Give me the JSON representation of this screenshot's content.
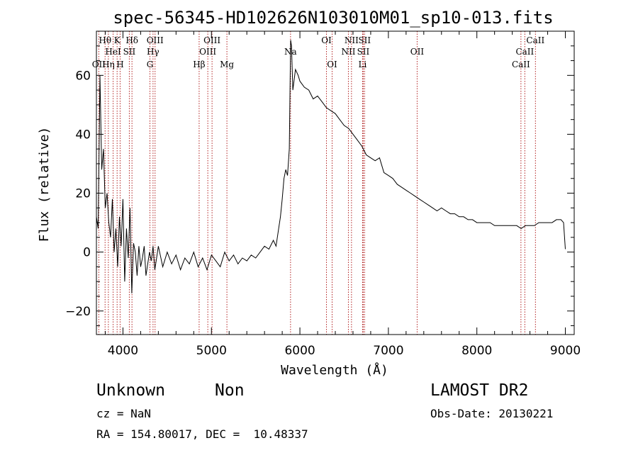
{
  "header": {
    "title": "spec-56345-HD102626N103010M01_sp10-013.fits"
  },
  "info": {
    "class": "Unknown",
    "subclass": "Non",
    "cz": "cz = NaN",
    "radec": "RA = 154.80017, DEC =  10.48337",
    "survey": "LAMOST DR2",
    "obsdate": "Obs-Date: 20130221"
  },
  "colors": {
    "line_marker": "#b22222",
    "spectrum": "#000000"
  },
  "chart_data": {
    "type": "line",
    "title": "spec-56345-HD102626N103010M01_sp10-013.fits",
    "xlabel": "Wavelength (Å)",
    "ylabel": "Flux (relative)",
    "xlim": [
      3700,
      9100
    ],
    "ylim": [
      -28,
      75
    ],
    "grid": false,
    "x_ticks": [
      {
        "value": 4000,
        "label": "4000"
      },
      {
        "value": 5000,
        "label": "5000"
      },
      {
        "value": 6000,
        "label": "6000"
      },
      {
        "value": 7000,
        "label": "7000"
      },
      {
        "value": 8000,
        "label": "8000"
      },
      {
        "value": 9000,
        "label": "9000"
      }
    ],
    "y_ticks": [
      {
        "value": -20,
        "label": "−20"
      },
      {
        "value": 0,
        "label": "0"
      },
      {
        "value": 20,
        "label": "20"
      },
      {
        "value": 40,
        "label": "40"
      },
      {
        "value": 60,
        "label": "60"
      }
    ],
    "spectral_lines": [
      {
        "label": "OII",
        "wavelength": 3727,
        "row": 3
      },
      {
        "label": "Hθ",
        "wavelength": 3798,
        "row": 1
      },
      {
        "label": "Hη",
        "wavelength": 3835,
        "row": 3
      },
      {
        "label": "HeI",
        "wavelength": 3889,
        "row": 2
      },
      {
        "label": "K",
        "wavelength": 3934,
        "row": 1
      },
      {
        "label": "H",
        "wavelength": 3968,
        "row": 3
      },
      {
        "label": "SII",
        "wavelength": 4072,
        "row": 2
      },
      {
        "label": "Hδ",
        "wavelength": 4102,
        "row": 1
      },
      {
        "label": "G",
        "wavelength": 4305,
        "row": 3
      },
      {
        "label": "Hγ",
        "wavelength": 4340,
        "row": 2
      },
      {
        "label": "OIII",
        "wavelength": 4363,
        "row": 1
      },
      {
        "label": "Hβ",
        "wavelength": 4861,
        "row": 3
      },
      {
        "label": "OIII",
        "wavelength": 4959,
        "row": 2
      },
      {
        "label": "OIII",
        "wavelength": 5007,
        "row": 1
      },
      {
        "label": "Mg",
        "wavelength": 5175,
        "row": 3
      },
      {
        "label": "Na",
        "wavelength": 5894,
        "row": 2
      },
      {
        "label": "OI",
        "wavelength": 6300,
        "row": 1
      },
      {
        "label": "OI",
        "wavelength": 6364,
        "row": 3
      },
      {
        "label": "NII",
        "wavelength": 6548,
        "row": 2
      },
      {
        "label": "NII",
        "wavelength": 6583,
        "row": 1
      },
      {
        "label": "Li",
        "wavelength": 6708,
        "row": 3
      },
      {
        "label": "SII",
        "wavelength": 6716,
        "row": 2
      },
      {
        "label": "SII",
        "wavelength": 6731,
        "row": 1
      },
      {
        "label": "OII",
        "wavelength": 7325,
        "row": 2
      },
      {
        "label": "CaII",
        "wavelength": 8498,
        "row": 3
      },
      {
        "label": "CaII",
        "wavelength": 8542,
        "row": 2
      },
      {
        "label": "CaII",
        "wavelength": 8662,
        "row": 1
      }
    ],
    "series": [
      {
        "values": [
          [
            3700,
            12
          ],
          [
            3720,
            8
          ],
          [
            3740,
            60
          ],
          [
            3760,
            28
          ],
          [
            3780,
            35
          ],
          [
            3800,
            15
          ],
          [
            3820,
            20
          ],
          [
            3840,
            10
          ],
          [
            3860,
            5
          ],
          [
            3880,
            18
          ],
          [
            3900,
            0
          ],
          [
            3920,
            8
          ],
          [
            3940,
            -5
          ],
          [
            3960,
            12
          ],
          [
            3980,
            2
          ],
          [
            4000,
            18
          ],
          [
            4020,
            -10
          ],
          [
            4040,
            8
          ],
          [
            4060,
            -2
          ],
          [
            4080,
            15
          ],
          [
            4100,
            -14
          ],
          [
            4120,
            3
          ],
          [
            4140,
            0
          ],
          [
            4160,
            -8
          ],
          [
            4180,
            2
          ],
          [
            4200,
            -5
          ],
          [
            4220,
            -2
          ],
          [
            4240,
            2
          ],
          [
            4260,
            -8
          ],
          [
            4280,
            -4
          ],
          [
            4300,
            0
          ],
          [
            4320,
            -3
          ],
          [
            4340,
            2
          ],
          [
            4360,
            -6
          ],
          [
            4380,
            -2
          ],
          [
            4400,
            2
          ],
          [
            4450,
            -5
          ],
          [
            4500,
            0
          ],
          [
            4550,
            -4
          ],
          [
            4600,
            -1
          ],
          [
            4650,
            -6
          ],
          [
            4700,
            -2
          ],
          [
            4750,
            -4
          ],
          [
            4800,
            0
          ],
          [
            4850,
            -5
          ],
          [
            4900,
            -2
          ],
          [
            4950,
            -6
          ],
          [
            5000,
            -1
          ],
          [
            5050,
            -3
          ],
          [
            5100,
            -5
          ],
          [
            5150,
            0
          ],
          [
            5200,
            -3
          ],
          [
            5250,
            -1
          ],
          [
            5300,
            -4
          ],
          [
            5350,
            -2
          ],
          [
            5400,
            -3
          ],
          [
            5450,
            -1
          ],
          [
            5500,
            -2
          ],
          [
            5550,
            0
          ],
          [
            5600,
            2
          ],
          [
            5650,
            1
          ],
          [
            5700,
            4
          ],
          [
            5730,
            2
          ],
          [
            5760,
            8
          ],
          [
            5780,
            12
          ],
          [
            5800,
            18
          ],
          [
            5820,
            25
          ],
          [
            5840,
            28
          ],
          [
            5860,
            26
          ],
          [
            5880,
            35
          ],
          [
            5895,
            72
          ],
          [
            5905,
            70
          ],
          [
            5920,
            55
          ],
          [
            5950,
            62
          ],
          [
            5980,
            60
          ],
          [
            6000,
            58
          ],
          [
            6050,
            56
          ],
          [
            6100,
            55
          ],
          [
            6150,
            52
          ],
          [
            6200,
            53
          ],
          [
            6250,
            51
          ],
          [
            6300,
            49
          ],
          [
            6350,
            48
          ],
          [
            6400,
            47
          ],
          [
            6450,
            45
          ],
          [
            6500,
            43
          ],
          [
            6550,
            42
          ],
          [
            6600,
            40
          ],
          [
            6650,
            38
          ],
          [
            6700,
            36
          ],
          [
            6750,
            33
          ],
          [
            6800,
            32
          ],
          [
            6850,
            31
          ],
          [
            6900,
            32
          ],
          [
            6950,
            27
          ],
          [
            7000,
            26
          ],
          [
            7050,
            25
          ],
          [
            7100,
            23
          ],
          [
            7150,
            22
          ],
          [
            7200,
            21
          ],
          [
            7250,
            20
          ],
          [
            7300,
            19
          ],
          [
            7350,
            18
          ],
          [
            7400,
            17
          ],
          [
            7450,
            16
          ],
          [
            7500,
            15
          ],
          [
            7550,
            14
          ],
          [
            7600,
            15
          ],
          [
            7650,
            14
          ],
          [
            7700,
            13
          ],
          [
            7750,
            13
          ],
          [
            7800,
            12
          ],
          [
            7850,
            12
          ],
          [
            7900,
            11
          ],
          [
            7950,
            11
          ],
          [
            8000,
            10
          ],
          [
            8050,
            10
          ],
          [
            8100,
            10
          ],
          [
            8150,
            10
          ],
          [
            8200,
            9
          ],
          [
            8250,
            9
          ],
          [
            8300,
            9
          ],
          [
            8350,
            9
          ],
          [
            8400,
            9
          ],
          [
            8450,
            9
          ],
          [
            8500,
            8
          ],
          [
            8550,
            9
          ],
          [
            8600,
            9
          ],
          [
            8650,
            9
          ],
          [
            8700,
            10
          ],
          [
            8750,
            10
          ],
          [
            8800,
            10
          ],
          [
            8850,
            10
          ],
          [
            8900,
            11
          ],
          [
            8950,
            11
          ],
          [
            8980,
            10
          ],
          [
            9000,
            1
          ]
        ]
      }
    ]
  }
}
